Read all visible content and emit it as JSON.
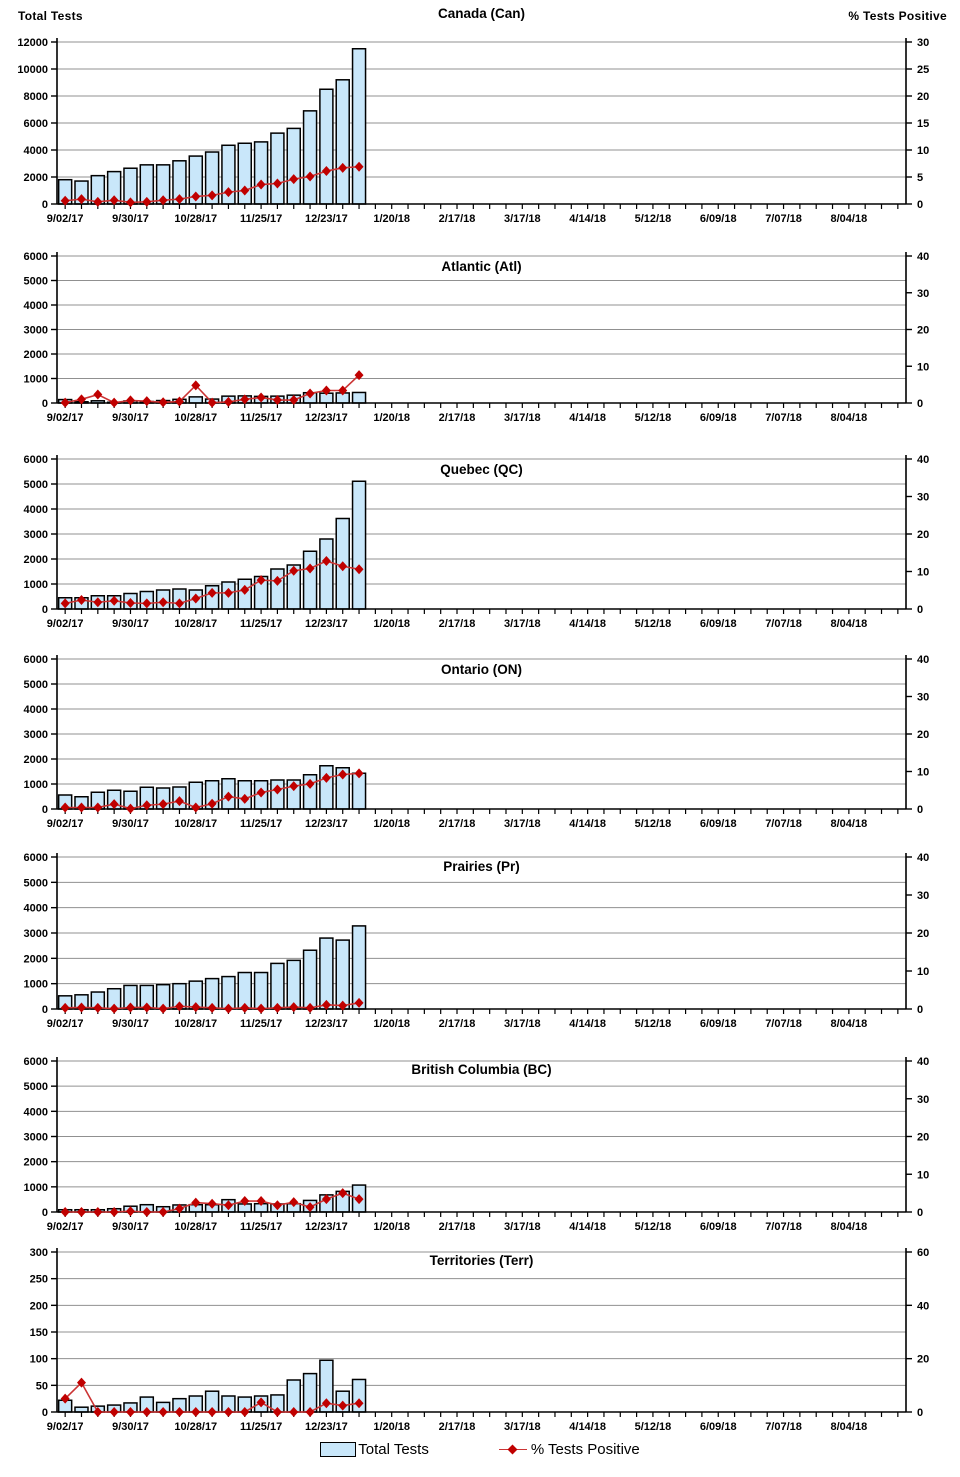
{
  "headers": {
    "left": "Total Tests",
    "right": "% Tests Positive"
  },
  "legend": {
    "total_tests": "Total Tests",
    "pct_positive": "% Tests Positive"
  },
  "colors": {
    "bar_fill": "#C9E7FA",
    "bar_border": "#000000",
    "line": "#CB3434",
    "marker": "#C00000",
    "grid": "#909090"
  },
  "x_axis": {
    "tick_labels": [
      "9/02/17",
      "9/30/17",
      "10/28/17",
      "11/25/17",
      "12/23/17",
      "1/20/18",
      "2/17/18",
      "3/17/18",
      "4/14/18",
      "5/12/18",
      "6/09/18",
      "7/07/18",
      "8/04/18"
    ],
    "weeks_shown": 52
  },
  "weeks": [
    "9/02/17",
    "9/09/17",
    "9/16/17",
    "9/23/17",
    "9/30/17",
    "10/07/17",
    "10/14/17",
    "10/21/17",
    "10/28/17",
    "11/04/17",
    "11/11/17",
    "11/18/17",
    "11/25/17",
    "12/02/17",
    "12/09/17",
    "12/16/17",
    "12/23/17",
    "12/30/17",
    "1/06/18"
  ],
  "chart_data": [
    {
      "type": "bar+line",
      "title": "Canada (Can)",
      "series": [
        {
          "name": "Total Tests",
          "values": [
            1800,
            1700,
            2100,
            2400,
            2650,
            2900,
            2900,
            3200,
            3550,
            3850,
            4350,
            4500,
            4600,
            5250,
            5600,
            6900,
            8500,
            9200,
            11500
          ]
        },
        {
          "name": "% Tests Positive",
          "values": [
            0.6,
            0.9,
            0.4,
            0.7,
            0.3,
            0.4,
            0.7,
            0.9,
            1.4,
            1.6,
            2.2,
            2.5,
            3.6,
            3.8,
            4.6,
            5.1,
            6.1,
            6.7,
            6.9
          ]
        }
      ],
      "left_axis": {
        "label": "Total Tests",
        "ticks": [
          0,
          2000,
          4000,
          6000,
          8000,
          10000,
          12000
        ]
      },
      "right_axis": {
        "label": "% Tests Positive",
        "ticks": [
          0,
          5,
          10,
          15,
          20,
          25,
          30
        ]
      }
    },
    {
      "type": "bar+line",
      "title": "Atlantic (Atl)",
      "series": [
        {
          "name": "Total Tests",
          "values": [
            140,
            50,
            90,
            30,
            85,
            60,
            100,
            150,
            250,
            160,
            280,
            290,
            270,
            280,
            320,
            420,
            400,
            410,
            430
          ]
        },
        {
          "name": "% Tests Positive",
          "values": [
            0.1,
            1.0,
            2.3,
            0.1,
            0.7,
            0.5,
            0.2,
            0.4,
            4.8,
            0.1,
            0.3,
            1.0,
            1.5,
            0.8,
            0.8,
            2.6,
            3.4,
            3.4,
            7.6
          ]
        }
      ],
      "left_axis": {
        "label": "Total Tests",
        "ticks": [
          0,
          1000,
          2000,
          3000,
          4000,
          5000,
          6000
        ]
      },
      "right_axis": {
        "label": "% Tests Positive",
        "ticks": [
          0,
          10,
          20,
          30,
          40
        ]
      }
    },
    {
      "type": "bar+line",
      "title": "Quebec (QC)",
      "series": [
        {
          "name": "Total Tests",
          "values": [
            450,
            450,
            530,
            530,
            620,
            700,
            760,
            800,
            760,
            930,
            1080,
            1190,
            1300,
            1600,
            1760,
            2310,
            2800,
            3620,
            5110
          ]
        },
        {
          "name": "% Tests Positive",
          "values": [
            1.5,
            2.4,
            1.8,
            2.2,
            1.6,
            1.5,
            1.8,
            1.5,
            2.8,
            4.3,
            4.3,
            5.1,
            7.7,
            7.5,
            10.2,
            10.8,
            12.8,
            11.4,
            10.6
          ]
        }
      ],
      "left_axis": {
        "label": "Total Tests",
        "ticks": [
          0,
          1000,
          2000,
          3000,
          4000,
          5000,
          6000
        ]
      },
      "right_axis": {
        "label": "% Tests Positive",
        "ticks": [
          0,
          10,
          20,
          30,
          40
        ]
      }
    },
    {
      "type": "bar+line",
      "title": "Ontario (ON)",
      "series": [
        {
          "name": "Total Tests",
          "values": [
            560,
            490,
            670,
            750,
            710,
            870,
            840,
            880,
            1070,
            1130,
            1210,
            1130,
            1130,
            1160,
            1160,
            1370,
            1730,
            1650,
            1430
          ]
        },
        {
          "name": "% Tests Positive",
          "values": [
            0.4,
            0.4,
            0.4,
            1.3,
            0.1,
            1.0,
            1.3,
            2.1,
            0.4,
            1.4,
            3.3,
            2.7,
            4.4,
            5.2,
            6.1,
            6.7,
            8.3,
            9.2,
            9.5
          ]
        }
      ],
      "left_axis": {
        "label": "Total Tests",
        "ticks": [
          0,
          1000,
          2000,
          3000,
          4000,
          5000,
          6000
        ]
      },
      "right_axis": {
        "label": "% Tests Positive",
        "ticks": [
          0,
          10,
          20,
          30,
          40
        ]
      }
    },
    {
      "type": "bar+line",
      "title": "Prairies (Pr)",
      "series": [
        {
          "name": "Total Tests",
          "values": [
            520,
            560,
            670,
            800,
            930,
            930,
            960,
            1000,
            1100,
            1200,
            1280,
            1440,
            1440,
            1800,
            1920,
            2320,
            2800,
            2720,
            3280
          ]
        },
        {
          "name": "% Tests Positive",
          "values": [
            0.3,
            0.4,
            0.3,
            0.1,
            0.4,
            0.4,
            0.1,
            0.7,
            0.5,
            0.3,
            0.1,
            0.3,
            0.1,
            0.3,
            0.5,
            0.3,
            1.1,
            0.9,
            1.6
          ]
        }
      ],
      "left_axis": {
        "label": "Total Tests",
        "ticks": [
          0,
          1000,
          2000,
          3000,
          4000,
          5000,
          6000
        ]
      },
      "right_axis": {
        "label": "% Tests Positive",
        "ticks": [
          0,
          10,
          20,
          30,
          40
        ]
      }
    },
    {
      "type": "bar+line",
      "title": "British Columbia (BC)",
      "series": [
        {
          "name": "Total Tests",
          "values": [
            90,
            90,
            90,
            130,
            230,
            290,
            210,
            280,
            290,
            290,
            490,
            320,
            330,
            320,
            330,
            460,
            680,
            820,
            1070
          ]
        },
        {
          "name": "% Tests Positive",
          "values": [
            0.0,
            0.0,
            0.0,
            0.0,
            0.2,
            0.0,
            0.0,
            0.9,
            2.5,
            2.2,
            1.8,
            2.9,
            2.9,
            1.8,
            2.6,
            1.3,
            3.4,
            5.0,
            3.4
          ]
        }
      ],
      "left_axis": {
        "label": "Total Tests",
        "ticks": [
          0,
          1000,
          2000,
          3000,
          4000,
          5000,
          6000
        ]
      },
      "right_axis": {
        "label": "% Tests Positive",
        "ticks": [
          0,
          10,
          20,
          30,
          40
        ]
      }
    },
    {
      "type": "bar+line",
      "title": "Territories (Terr)",
      "series": [
        {
          "name": "Total Tests",
          "values": [
            22,
            9,
            11,
            13,
            17,
            28,
            18,
            25,
            30,
            39,
            30,
            28,
            30,
            32,
            60,
            72,
            97,
            39,
            61
          ]
        },
        {
          "name": "% Tests Positive",
          "values": [
            5.0,
            11.0,
            0,
            0,
            0,
            0,
            0,
            0,
            0,
            0,
            0,
            0,
            3.6,
            0,
            0,
            0,
            3.3,
            2.4,
            3.3
          ]
        }
      ],
      "left_axis": {
        "label": "Total Tests",
        "ticks": [
          0,
          50,
          100,
          150,
          200,
          250,
          300
        ]
      },
      "right_axis": {
        "label": "% Tests Positive",
        "ticks": [
          0,
          20,
          40,
          60
        ]
      }
    }
  ]
}
